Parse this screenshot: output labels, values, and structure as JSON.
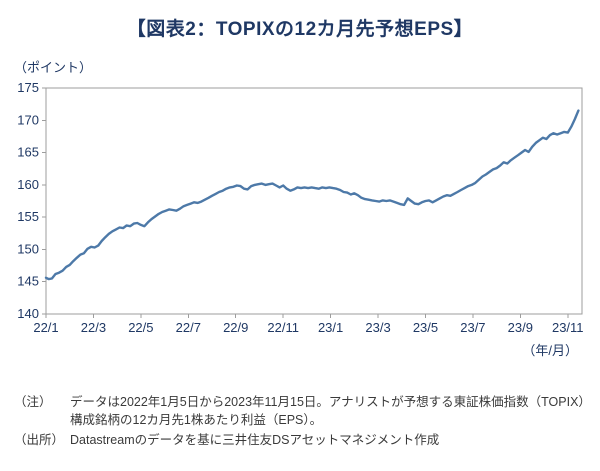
{
  "header": {
    "title": "【図表2：TOPIXの12カ月先予想EPS】"
  },
  "chart_data": {
    "type": "line",
    "title": "【図表2：TOPIXの12カ月先予想EPS】",
    "y_unit_label": "（ポイント）",
    "x_unit_label": "（年/月）",
    "ylabel": "ポイント",
    "xlabel": "年/月",
    "ylim": [
      140,
      175
    ],
    "ytick_step": 5,
    "xmax": 22.6,
    "grid": false,
    "legend": "none",
    "axis_color": "#9d9d9d",
    "xticks": [
      {
        "pos": 0,
        "label": "22/1"
      },
      {
        "pos": 2,
        "label": "22/3"
      },
      {
        "pos": 4,
        "label": "22/5"
      },
      {
        "pos": 6,
        "label": "22/7"
      },
      {
        "pos": 8,
        "label": "22/9"
      },
      {
        "pos": 10,
        "label": "22/11"
      },
      {
        "pos": 12,
        "label": "23/1"
      },
      {
        "pos": 14,
        "label": "23/3"
      },
      {
        "pos": 16,
        "label": "23/5"
      },
      {
        "pos": 18,
        "label": "23/7"
      },
      {
        "pos": 20,
        "label": "23/9"
      },
      {
        "pos": 22,
        "label": "23/11"
      }
    ],
    "series": [
      {
        "name": "TOPIXの12カ月先予想EPS",
        "color": "#4d79a8",
        "points": [
          [
            0,
            145.6
          ],
          [
            0.12,
            145.4
          ],
          [
            0.25,
            145.5
          ],
          [
            0.4,
            146.2
          ],
          [
            0.55,
            146.4
          ],
          [
            0.7,
            146.7
          ],
          [
            0.85,
            147.3
          ],
          [
            1.0,
            147.6
          ],
          [
            1.15,
            148.2
          ],
          [
            1.3,
            148.7
          ],
          [
            1.45,
            149.2
          ],
          [
            1.6,
            149.4
          ],
          [
            1.75,
            150.1
          ],
          [
            1.9,
            150.4
          ],
          [
            2.05,
            150.3
          ],
          [
            2.2,
            150.6
          ],
          [
            2.35,
            151.3
          ],
          [
            2.5,
            151.9
          ],
          [
            2.65,
            152.4
          ],
          [
            2.8,
            152.8
          ],
          [
            2.95,
            153.1
          ],
          [
            3.1,
            153.4
          ],
          [
            3.25,
            153.3
          ],
          [
            3.4,
            153.7
          ],
          [
            3.55,
            153.6
          ],
          [
            3.7,
            154.0
          ],
          [
            3.85,
            154.1
          ],
          [
            4.0,
            153.8
          ],
          [
            4.15,
            153.6
          ],
          [
            4.3,
            154.2
          ],
          [
            4.45,
            154.7
          ],
          [
            4.6,
            155.1
          ],
          [
            4.75,
            155.5
          ],
          [
            4.9,
            155.8
          ],
          [
            5.05,
            156.0
          ],
          [
            5.2,
            156.2
          ],
          [
            5.35,
            156.1
          ],
          [
            5.5,
            156.0
          ],
          [
            5.65,
            156.3
          ],
          [
            5.8,
            156.7
          ],
          [
            5.95,
            156.9
          ],
          [
            6.1,
            157.1
          ],
          [
            6.25,
            157.3
          ],
          [
            6.4,
            157.2
          ],
          [
            6.55,
            157.4
          ],
          [
            6.7,
            157.7
          ],
          [
            6.85,
            158.0
          ],
          [
            7.0,
            158.3
          ],
          [
            7.15,
            158.6
          ],
          [
            7.3,
            158.9
          ],
          [
            7.45,
            159.1
          ],
          [
            7.6,
            159.4
          ],
          [
            7.75,
            159.6
          ],
          [
            7.9,
            159.7
          ],
          [
            8.05,
            159.9
          ],
          [
            8.2,
            159.8
          ],
          [
            8.35,
            159.4
          ],
          [
            8.5,
            159.3
          ],
          [
            8.65,
            159.8
          ],
          [
            8.8,
            160.0
          ],
          [
            8.95,
            160.1
          ],
          [
            9.1,
            160.2
          ],
          [
            9.25,
            160.0
          ],
          [
            9.4,
            160.1
          ],
          [
            9.55,
            160.2
          ],
          [
            9.7,
            159.9
          ],
          [
            9.85,
            159.6
          ],
          [
            10.0,
            159.9
          ],
          [
            10.15,
            159.4
          ],
          [
            10.3,
            159.1
          ],
          [
            10.45,
            159.3
          ],
          [
            10.6,
            159.6
          ],
          [
            10.75,
            159.5
          ],
          [
            10.9,
            159.6
          ],
          [
            11.05,
            159.5
          ],
          [
            11.2,
            159.6
          ],
          [
            11.35,
            159.5
          ],
          [
            11.5,
            159.4
          ],
          [
            11.65,
            159.6
          ],
          [
            11.8,
            159.5
          ],
          [
            11.95,
            159.6
          ],
          [
            12.1,
            159.5
          ],
          [
            12.25,
            159.4
          ],
          [
            12.4,
            159.2
          ],
          [
            12.55,
            158.9
          ],
          [
            12.7,
            158.8
          ],
          [
            12.85,
            158.5
          ],
          [
            13.0,
            158.7
          ],
          [
            13.15,
            158.4
          ],
          [
            13.3,
            158.0
          ],
          [
            13.45,
            157.8
          ],
          [
            13.6,
            157.7
          ],
          [
            13.75,
            157.6
          ],
          [
            13.9,
            157.5
          ],
          [
            14.05,
            157.4
          ],
          [
            14.2,
            157.6
          ],
          [
            14.35,
            157.5
          ],
          [
            14.5,
            157.6
          ],
          [
            14.65,
            157.4
          ],
          [
            14.8,
            157.2
          ],
          [
            14.95,
            157.0
          ],
          [
            15.1,
            156.9
          ],
          [
            15.25,
            157.9
          ],
          [
            15.4,
            157.5
          ],
          [
            15.55,
            157.1
          ],
          [
            15.7,
            157.0
          ],
          [
            15.85,
            157.3
          ],
          [
            16.0,
            157.5
          ],
          [
            16.15,
            157.6
          ],
          [
            16.3,
            157.3
          ],
          [
            16.45,
            157.6
          ],
          [
            16.6,
            157.9
          ],
          [
            16.75,
            158.2
          ],
          [
            16.9,
            158.4
          ],
          [
            17.05,
            158.3
          ],
          [
            17.2,
            158.6
          ],
          [
            17.35,
            158.9
          ],
          [
            17.5,
            159.2
          ],
          [
            17.65,
            159.5
          ],
          [
            17.8,
            159.8
          ],
          [
            17.95,
            160.0
          ],
          [
            18.1,
            160.3
          ],
          [
            18.25,
            160.8
          ],
          [
            18.4,
            161.3
          ],
          [
            18.55,
            161.6
          ],
          [
            18.7,
            162.0
          ],
          [
            18.85,
            162.4
          ],
          [
            19.0,
            162.6
          ],
          [
            19.15,
            163.0
          ],
          [
            19.3,
            163.5
          ],
          [
            19.45,
            163.3
          ],
          [
            19.6,
            163.8
          ],
          [
            19.75,
            164.2
          ],
          [
            19.9,
            164.6
          ],
          [
            20.05,
            165.0
          ],
          [
            20.2,
            165.4
          ],
          [
            20.35,
            165.1
          ],
          [
            20.5,
            165.9
          ],
          [
            20.65,
            166.5
          ],
          [
            20.8,
            166.9
          ],
          [
            20.95,
            167.3
          ],
          [
            21.1,
            167.1
          ],
          [
            21.25,
            167.7
          ],
          [
            21.4,
            168.0
          ],
          [
            21.55,
            167.8
          ],
          [
            21.7,
            168.0
          ],
          [
            21.85,
            168.2
          ],
          [
            22.0,
            168.1
          ],
          [
            22.15,
            169.0
          ],
          [
            22.3,
            170.2
          ],
          [
            22.45,
            171.5
          ]
        ]
      }
    ]
  },
  "notes": [
    {
      "label": "（注）",
      "text": "データは2022年1月5日から2023年11月15日。アナリストが予想する東証株価指数（TOPIX）構成銘柄の12カ月先1株あたり利益（EPS）。"
    },
    {
      "label": "（出所）",
      "text": "Datastreamのデータを基に三井住友DSアセットマネジメント作成"
    }
  ]
}
